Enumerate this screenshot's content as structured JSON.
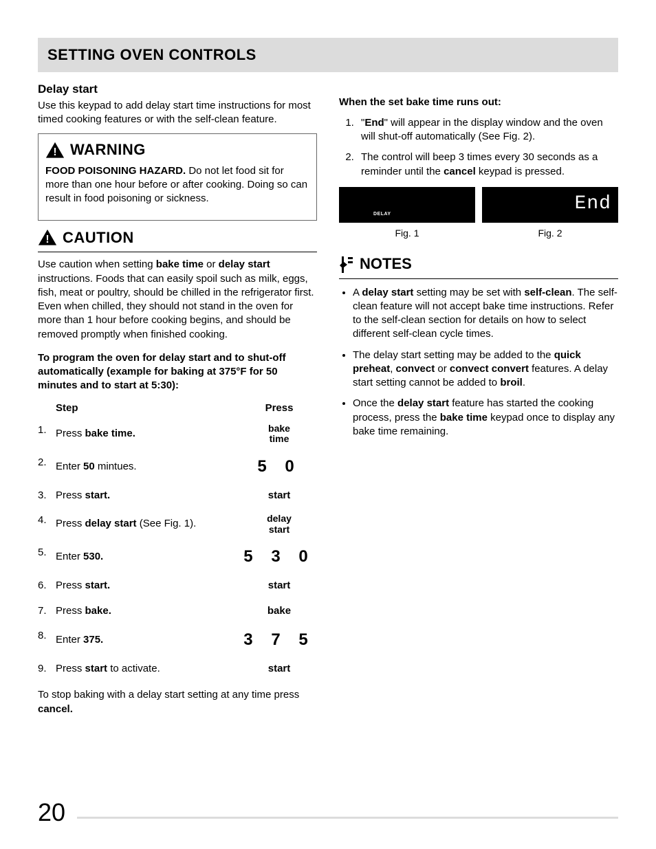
{
  "page": {
    "number": "20",
    "section_title": "SETTING OVEN CONTROLS"
  },
  "left": {
    "subhead": "Delay start",
    "intro": "Use this keypad to add delay start time instructions for most timed cooking features or with the self-clean feature.",
    "warning": {
      "title": "WARNING",
      "body_bold": "FOOD POISONING HAZARD.",
      "body_rest": " Do not let food sit for more than one hour before or after cooking. Doing so can result in food poisoning or sickness."
    },
    "caution": {
      "title": "CAUTION",
      "body_pre": "Use caution when setting ",
      "body_b1": "bake time",
      "body_mid1": " or ",
      "body_b2": "delay start",
      "body_post": " instructions. Foods that can easily spoil such as milk, eggs, fish, meat or poultry, should be chilled in the refrigerator first. Even when chilled, they should not stand in the oven for more than 1 hour before cooking begins, and should be removed promptly when finished cooking."
    },
    "instruct": "To program the oven for delay start and to shut-off automatically (example for baking at 375°F for 50 minutes and to start at 5:30):",
    "table": {
      "headers": {
        "step": "Step",
        "press": "Press"
      },
      "rows": [
        {
          "n": "1.",
          "pre": "Press ",
          "b": "bake time.",
          "post": "",
          "press": "bake\ntime",
          "press_style": "small2"
        },
        {
          "n": "2.",
          "pre": "Enter ",
          "b": "50",
          "post": " mintues.",
          "press": "5 0",
          "press_style": "digits"
        },
        {
          "n": "3.",
          "pre": "Press ",
          "b": "start.",
          "post": "",
          "press": "start",
          "press_style": "small"
        },
        {
          "n": "4.",
          "pre": "Press ",
          "b": "delay start",
          "post": " (See Fig. 1).",
          "press": "delay\nstart",
          "press_style": "small2"
        },
        {
          "n": "5.",
          "pre": "Enter ",
          "b": "530.",
          "post": "",
          "press": "5 3 0",
          "press_style": "digits"
        },
        {
          "n": "6.",
          "pre": "Press ",
          "b": "start.",
          "post": "",
          "press": "start",
          "press_style": "small"
        },
        {
          "n": "7.",
          "pre": "Press ",
          "b": "bake.",
          "post": "",
          "press": "bake",
          "press_style": "small"
        },
        {
          "n": "8.",
          "pre": "Enter ",
          "b": "375.",
          "post": "",
          "press": "3 7 5",
          "press_style": "digits"
        },
        {
          "n": "9.",
          "pre": "Press ",
          "b": "start",
          "post": " to activate.",
          "press": "start",
          "press_style": "small"
        }
      ]
    },
    "footer_pre": "To stop baking with a delay start setting at any time press ",
    "footer_b": "cancel."
  },
  "right": {
    "runout_head": "When the set bake time runs out:",
    "runout": [
      {
        "pre": "\"",
        "b1": "End",
        "mid": "\" will appear in the display window and the oven will shut-off automatically (See Fig. 2).",
        "b2": "",
        "post": ""
      },
      {
        "pre": "The control will beep 3 times every 30 seconds as a reminder until the ",
        "b1": "cancel",
        "mid": " keypad is pressed.",
        "b2": "",
        "post": ""
      }
    ],
    "figs": {
      "fig1": {
        "tiny": "DELAY",
        "caption": "Fig. 1"
      },
      "fig2": {
        "display": "End",
        "caption": "Fig. 2"
      }
    },
    "notes_title": "NOTES",
    "notes": [
      {
        "pre": "A ",
        "b1": "delay start",
        "mid1": " setting may be set with ",
        "b2": "self-clean",
        "post": ". The self-clean feature will not accept bake time instructions. Refer to the self-clean section for details on how to select different self-clean cycle times."
      },
      {
        "pre": "The delay start setting may be added to the ",
        "b1": "quick preheat",
        "mid1": ", ",
        "b2": "convect",
        "mid2": " or ",
        "b3": "convect convert",
        "mid3": " features. A delay start setting cannot be added to ",
        "b4": "broil",
        "post": "."
      },
      {
        "pre": "Once the ",
        "b1": "delay start",
        "mid1": " feature has started the cooking process, press the ",
        "b2": "bake time",
        "post": " keypad once to display any bake time remaining."
      }
    ]
  },
  "style": {
    "section_bg": "#dcdcdc",
    "text_color": "#000000",
    "fig_bg": "#000000",
    "fig_fg": "#ffffff"
  }
}
